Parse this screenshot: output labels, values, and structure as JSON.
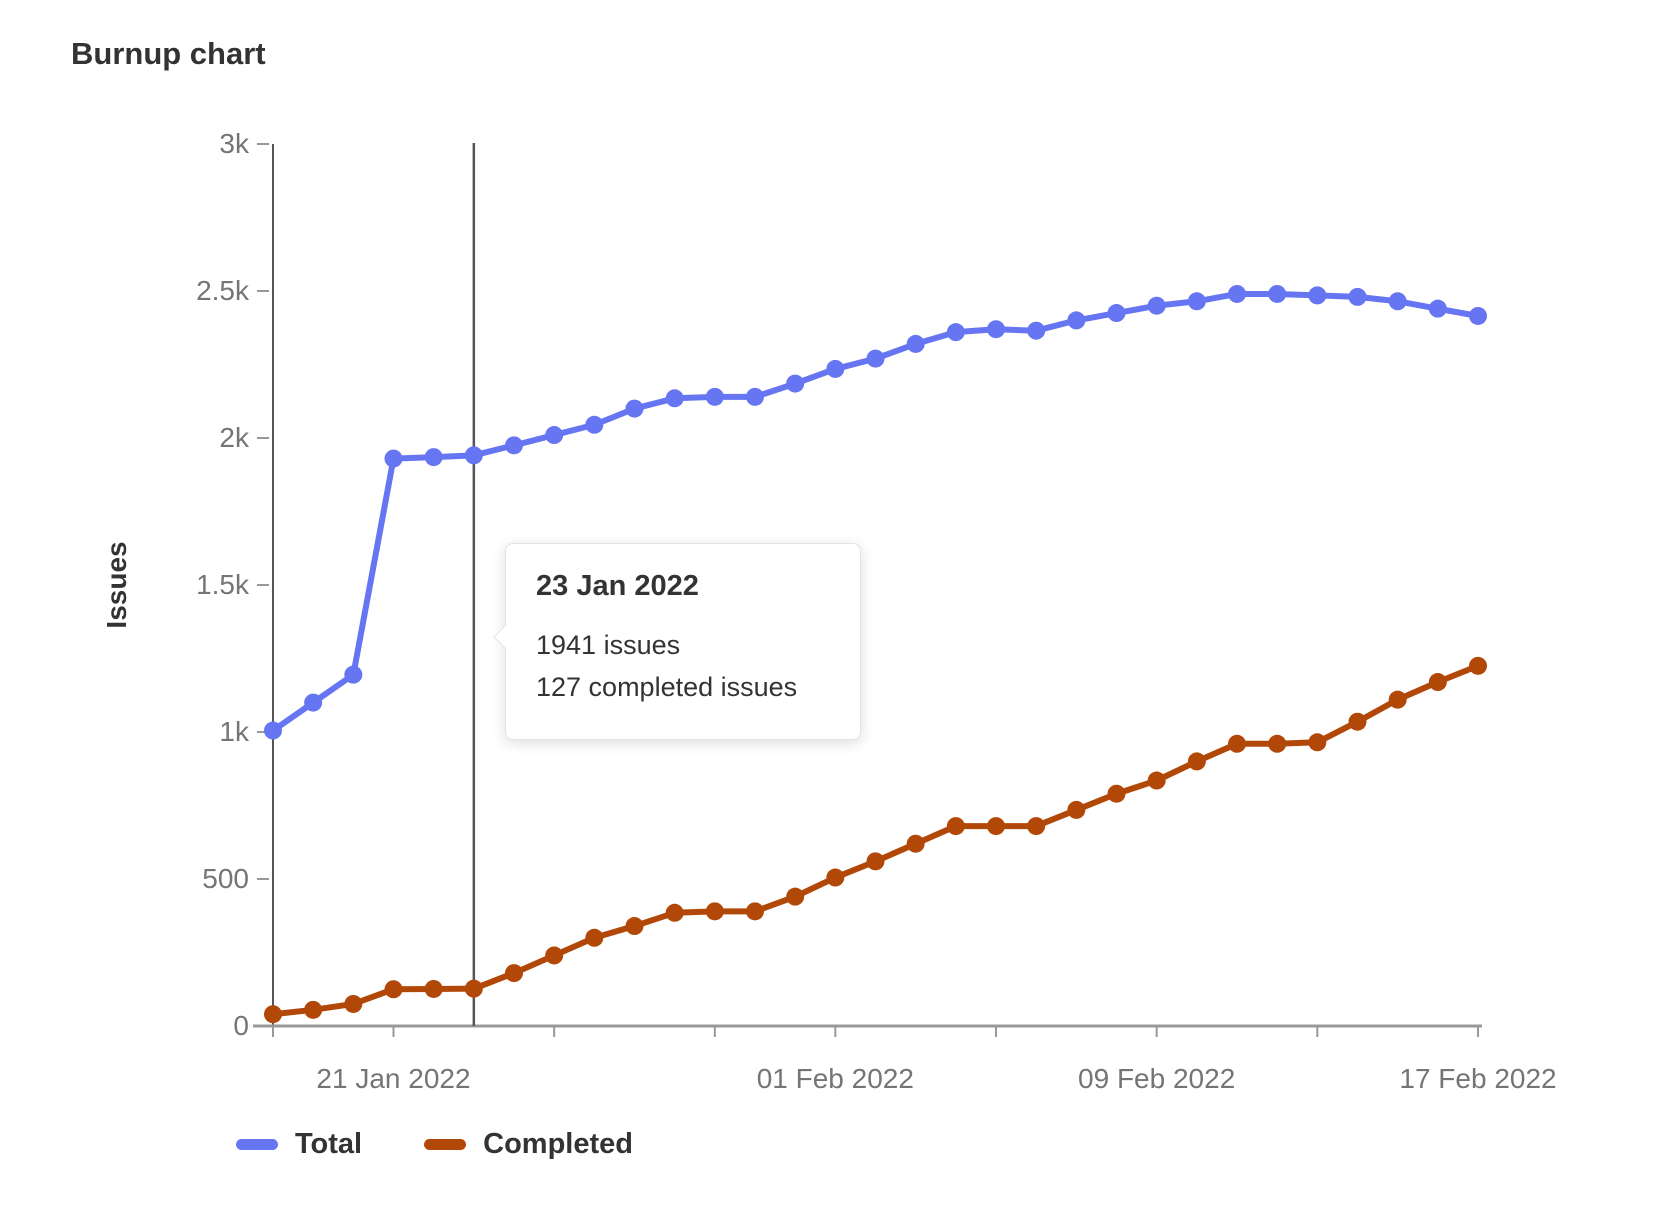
{
  "page": {
    "title": "Burnup chart"
  },
  "chart_data": {
    "type": "line",
    "title": "Burnup chart",
    "xlabel": "",
    "ylabel": "Issues",
    "ylim": [
      0,
      3000
    ],
    "grid": false,
    "legend_position": "bottom",
    "y_ticks": [
      {
        "value": 0,
        "label": "0"
      },
      {
        "value": 500,
        "label": "500"
      },
      {
        "value": 1000,
        "label": "1k"
      },
      {
        "value": 1500,
        "label": "1.5k"
      },
      {
        "value": 2000,
        "label": "2k"
      },
      {
        "value": 2500,
        "label": "2.5k"
      },
      {
        "value": 3000,
        "label": "3k"
      }
    ],
    "dates": [
      "18 Jan 2022",
      "19 Jan 2022",
      "20 Jan 2022",
      "21 Jan 2022",
      "22 Jan 2022",
      "23 Jan 2022",
      "24 Jan 2022",
      "25 Jan 2022",
      "26 Jan 2022",
      "27 Jan 2022",
      "28 Jan 2022",
      "29 Jan 2022",
      "30 Jan 2022",
      "31 Jan 2022",
      "01 Feb 2022",
      "02 Feb 2022",
      "03 Feb 2022",
      "04 Feb 2022",
      "05 Feb 2022",
      "06 Feb 2022",
      "07 Feb 2022",
      "08 Feb 2022",
      "09 Feb 2022",
      "10 Feb 2022",
      "11 Feb 2022",
      "12 Feb 2022",
      "13 Feb 2022",
      "14 Feb 2022",
      "15 Feb 2022",
      "16 Feb 2022",
      "17 Feb 2022"
    ],
    "x_labels": [
      {
        "index": 3,
        "label": "21 Jan 2022"
      },
      {
        "index": 14,
        "label": "01 Feb 2022"
      },
      {
        "index": 22,
        "label": "09 Feb 2022"
      },
      {
        "index": 30,
        "label": "17 Feb 2022"
      }
    ],
    "x_tick_indices": [
      0,
      3,
      7,
      11,
      14,
      18,
      22,
      26,
      30
    ],
    "series": [
      {
        "name": "Total",
        "color": "#6675f1",
        "values": [
          1005,
          1100,
          1195,
          1930,
          1935,
          1941,
          1975,
          2010,
          2045,
          2100,
          2135,
          2140,
          2140,
          2185,
          2235,
          2270,
          2320,
          2360,
          2370,
          2365,
          2400,
          2425,
          2450,
          2465,
          2490,
          2490,
          2485,
          2480,
          2465,
          2440,
          2415
        ]
      },
      {
        "name": "Completed",
        "color": "#b24808",
        "values": [
          40,
          55,
          75,
          125,
          126,
          127,
          180,
          240,
          300,
          340,
          385,
          390,
          390,
          440,
          505,
          560,
          620,
          680,
          680,
          680,
          735,
          790,
          835,
          900,
          960,
          960,
          965,
          1035,
          1110,
          1170,
          1225
        ]
      }
    ],
    "selected_date": "23 Jan 2022",
    "selected_index": 5
  },
  "tooltip": {
    "title": "23 Jan 2022",
    "line1": "1941 issues",
    "line2": "127 completed issues"
  },
  "legend": {
    "items": [
      {
        "label": "Total",
        "color": "#6675f1"
      },
      {
        "label": "Completed",
        "color": "#b24808"
      }
    ]
  },
  "colors": {
    "total": "#6675f1",
    "completed": "#b24808",
    "selected_line": "#55545a",
    "y_axis_line": "#555555",
    "x_axis_line": "#999999",
    "tick_label": "#757575",
    "text": "#333333"
  }
}
